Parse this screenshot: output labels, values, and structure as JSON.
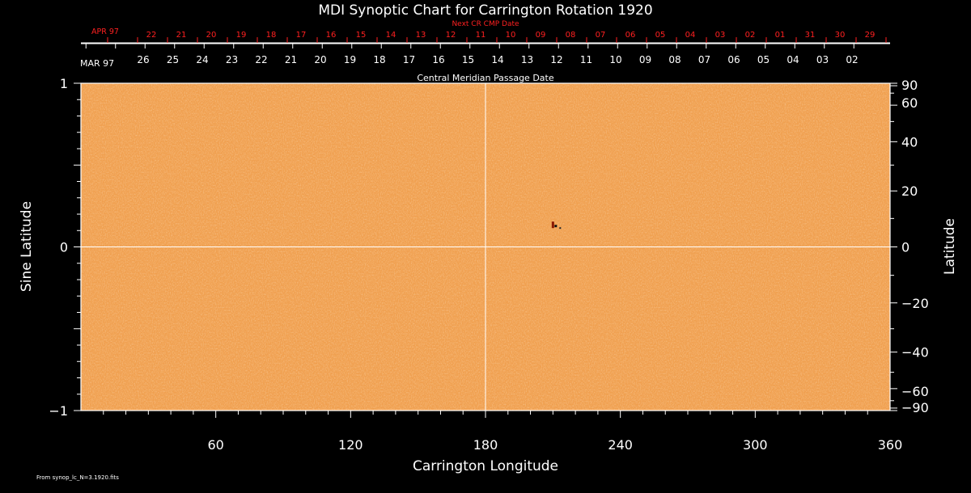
{
  "chart_data": {
    "type": "heatmap",
    "title": "MDI Synoptic Chart for Carrington Rotation 1920",
    "xlabel": "Carrington Longitude",
    "ylabel_left": "Sine Latitude",
    "ylabel_right": "Latitude",
    "xlim": [
      0,
      360
    ],
    "ylim": [
      -1,
      1
    ],
    "x_ticks": [
      60,
      120,
      180,
      240,
      300,
      360
    ],
    "y_left_ticks": [
      {
        "value": 1,
        "label": "1"
      },
      {
        "value": 0,
        "label": "0"
      },
      {
        "value": -1,
        "label": "−1"
      }
    ],
    "y_right_ticks": [
      {
        "deg": 90,
        "label": "90"
      },
      {
        "deg": 60,
        "label": "60"
      },
      {
        "deg": 40,
        "label": "40"
      },
      {
        "deg": 20,
        "label": "20"
      },
      {
        "deg": 0,
        "label": "0"
      },
      {
        "deg": -20,
        "label": "−20"
      },
      {
        "deg": -40,
        "label": "−40"
      },
      {
        "deg": -60,
        "label": "−60"
      },
      {
        "deg": -90,
        "label": "−90"
      }
    ],
    "grid": {
      "x": [
        180
      ],
      "y": [
        0
      ]
    },
    "top_axis_label": "Central Meridian Passage Date",
    "top_axis_month": "MAR 97",
    "top_axis_days": [
      "26",
      "25",
      "24",
      "23",
      "22",
      "21",
      "20",
      "19",
      "18",
      "17",
      "16",
      "15",
      "14",
      "13",
      "12",
      "11",
      "10",
      "09",
      "08",
      "07",
      "06",
      "05",
      "04",
      "03",
      "02"
    ],
    "next_axis_label": "Next CR CMP Date",
    "next_axis_month": "APR 97",
    "next_axis_days": [
      "22",
      "21",
      "20",
      "19",
      "18",
      "17",
      "16",
      "15",
      "14",
      "13",
      "12",
      "11",
      "10",
      "09",
      "08",
      "07",
      "06",
      "05",
      "04",
      "03",
      "02",
      "01",
      "31",
      "30",
      "29"
    ],
    "features": [
      {
        "name": "small magnetic region",
        "longitude": 210,
        "sine_latitude": 0.13
      }
    ],
    "footer": "From synop_lc_N=3.1920.fits",
    "colors": {
      "background": "#000000",
      "map": "#f0a050",
      "text": "#ffffff",
      "next_axis": "#ff2020"
    }
  }
}
